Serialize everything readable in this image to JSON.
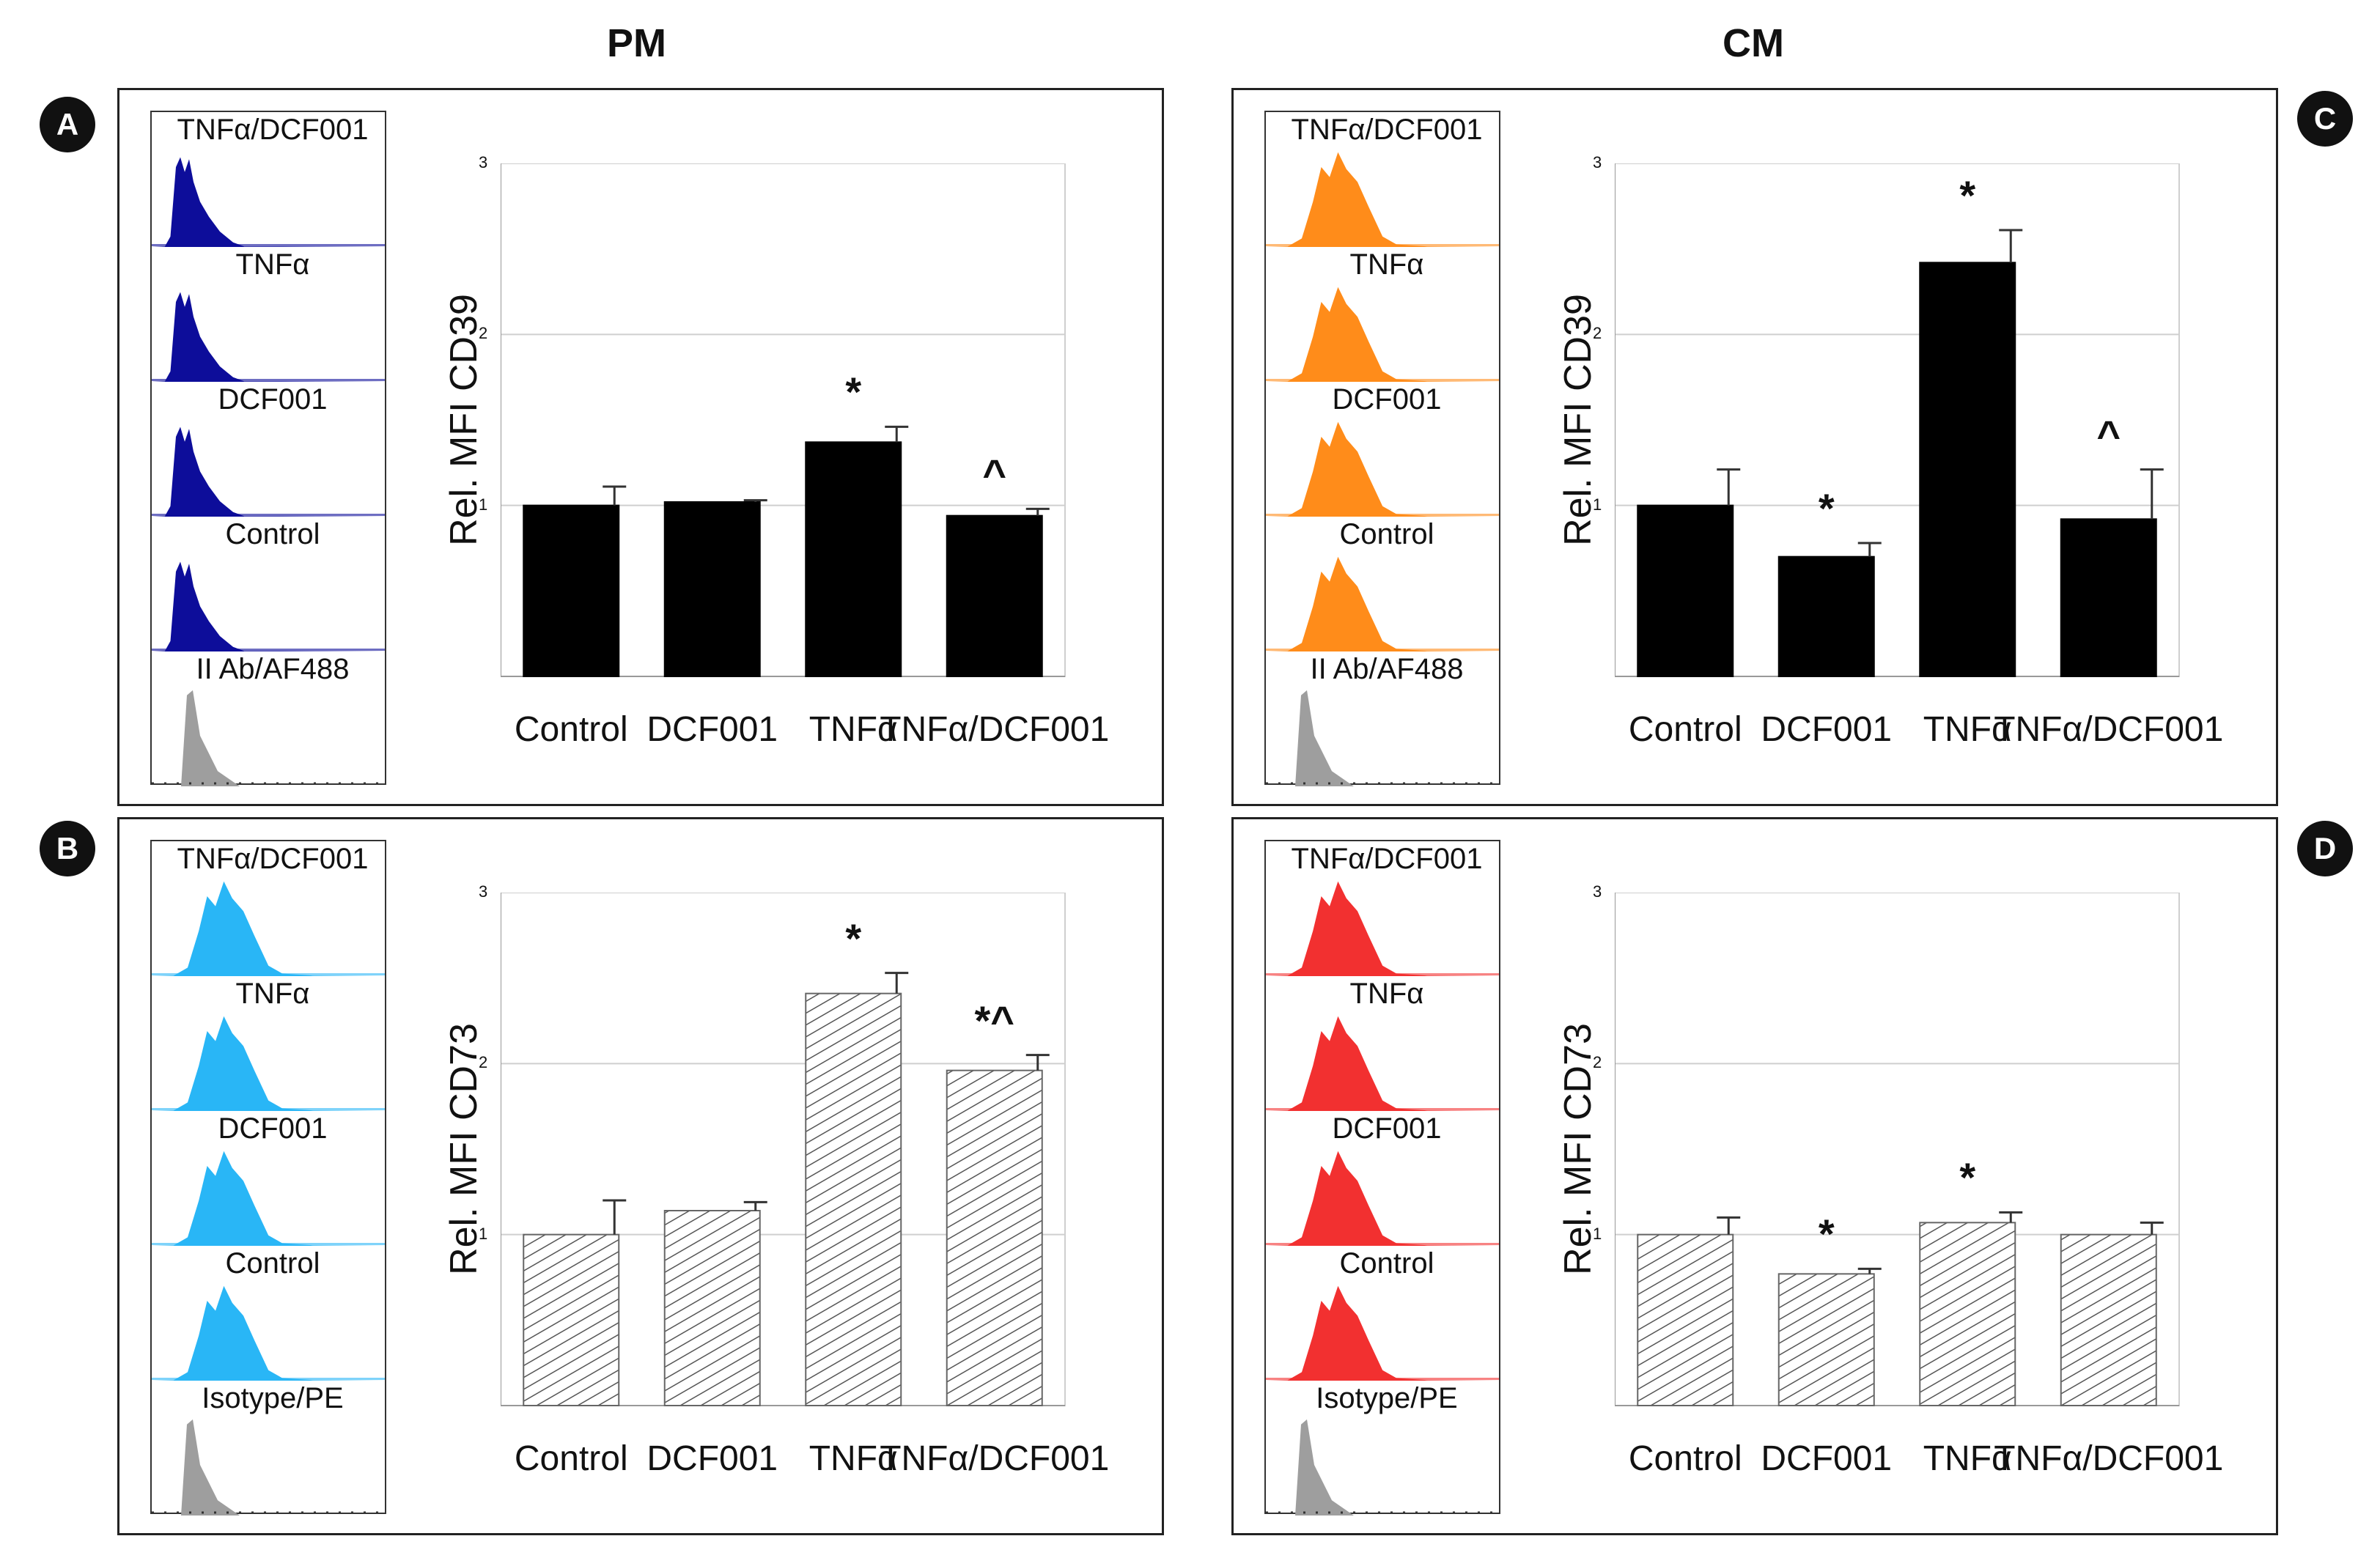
{
  "titles": {
    "left": "PM",
    "right": "CM"
  },
  "panels": {
    "A": {
      "badge": "A",
      "hist_color": "#0d0d9a",
      "hist_labels": [
        "TNFα/DCF001",
        "TNFα",
        "DCF001",
        "Control",
        "II Ab/AF488"
      ],
      "chart": {
        "type": "bar",
        "fill": "solid",
        "ylabel": "Rel. MFI CD39",
        "categories": [
          "Control",
          "DCF001",
          "TNFα",
          "TNFα/DCF001"
        ],
        "values": [
          1.0,
          1.02,
          1.37,
          0.94
        ],
        "errors": [
          0.11,
          0.01,
          0.09,
          0.04
        ],
        "marks": [
          "",
          "",
          "*",
          "^"
        ],
        "ylim": [
          0,
          3
        ],
        "yticks": [
          "1",
          "2",
          "3"
        ]
      }
    },
    "B": {
      "badge": "B",
      "hist_color": "#29b6f6",
      "hist_labels": [
        "TNFα/DCF001",
        "TNFα",
        "DCF001",
        "Control",
        "Isotype/PE"
      ],
      "chart": {
        "type": "bar",
        "fill": "hatched",
        "ylabel": "Rel. MFI CD73",
        "categories": [
          "Control",
          "DCF001",
          "TNFα",
          "TNFα/DCF001"
        ],
        "values": [
          1.0,
          1.14,
          2.41,
          1.96
        ],
        "errors": [
          0.2,
          0.05,
          0.12,
          0.09
        ],
        "marks": [
          "",
          "",
          "*",
          "*^"
        ],
        "ylim": [
          0,
          3
        ],
        "yticks": [
          "1",
          "2",
          "3"
        ]
      }
    },
    "C": {
      "badge": "C",
      "hist_color": "#ff8c1a",
      "hist_labels": [
        "TNFα/DCF001",
        "TNFα",
        "DCF001",
        "Control",
        "II Ab/AF488"
      ],
      "chart": {
        "type": "bar",
        "fill": "solid",
        "ylabel": "Rel. MFI CD39",
        "categories": [
          "Control",
          "DCF001",
          "TNFα",
          "TNFα/DCF001"
        ],
        "values": [
          1.0,
          0.7,
          2.42,
          0.92
        ],
        "errors": [
          0.21,
          0.08,
          0.19,
          0.29
        ],
        "marks": [
          "",
          "*",
          "*",
          "^"
        ],
        "ylim": [
          0,
          3
        ],
        "yticks": [
          "1",
          "2",
          "3"
        ]
      }
    },
    "D": {
      "badge": "D",
      "hist_color": "#f23030",
      "hist_labels": [
        "TNFα/DCF001",
        "TNFα",
        "DCF001",
        "Control",
        "Isotype/PE"
      ],
      "chart": {
        "type": "bar",
        "fill": "hatched",
        "ylabel": "Rel. MFI CD73",
        "categories": [
          "Control",
          "DCF001",
          "TNFα",
          "TNFα/DCF001"
        ],
        "values": [
          1.0,
          0.77,
          1.07,
          1.0
        ],
        "errors": [
          0.1,
          0.03,
          0.06,
          0.07
        ],
        "marks": [
          "",
          "*",
          "*",
          ""
        ],
        "ylim": [
          0,
          3
        ],
        "yticks": [
          "1",
          "2",
          "3"
        ]
      }
    }
  },
  "chart_data": [
    {
      "type": "bar",
      "panel": "A",
      "title": "PM",
      "ylabel": "Rel. MFI CD39",
      "categories": [
        "Control",
        "DCF001",
        "TNFα",
        "TNFα/DCF001"
      ],
      "values": [
        1.0,
        1.02,
        1.37,
        0.94
      ],
      "errors": [
        0.11,
        0.01,
        0.09,
        0.04
      ],
      "ylim": [
        0,
        3
      ]
    },
    {
      "type": "bar",
      "panel": "B",
      "title": "PM",
      "ylabel": "Rel. MFI CD73",
      "categories": [
        "Control",
        "DCF001",
        "TNFα",
        "TNFα/DCF001"
      ],
      "values": [
        1.0,
        1.14,
        2.41,
        1.96
      ],
      "errors": [
        0.2,
        0.05,
        0.12,
        0.09
      ],
      "ylim": [
        0,
        3
      ]
    },
    {
      "type": "bar",
      "panel": "C",
      "title": "CM",
      "ylabel": "Rel. MFI CD39",
      "categories": [
        "Control",
        "DCF001",
        "TNFα",
        "TNFα/DCF001"
      ],
      "values": [
        1.0,
        0.7,
        2.42,
        0.92
      ],
      "errors": [
        0.21,
        0.08,
        0.19,
        0.29
      ],
      "ylim": [
        0,
        3
      ]
    },
    {
      "type": "bar",
      "panel": "D",
      "title": "CM",
      "ylabel": "Rel. MFI CD73",
      "categories": [
        "Control",
        "DCF001",
        "TNFα",
        "TNFα/DCF001"
      ],
      "values": [
        1.0,
        0.77,
        1.07,
        1.0
      ],
      "errors": [
        0.1,
        0.03,
        0.06,
        0.07
      ],
      "ylim": [
        0,
        3
      ]
    }
  ]
}
